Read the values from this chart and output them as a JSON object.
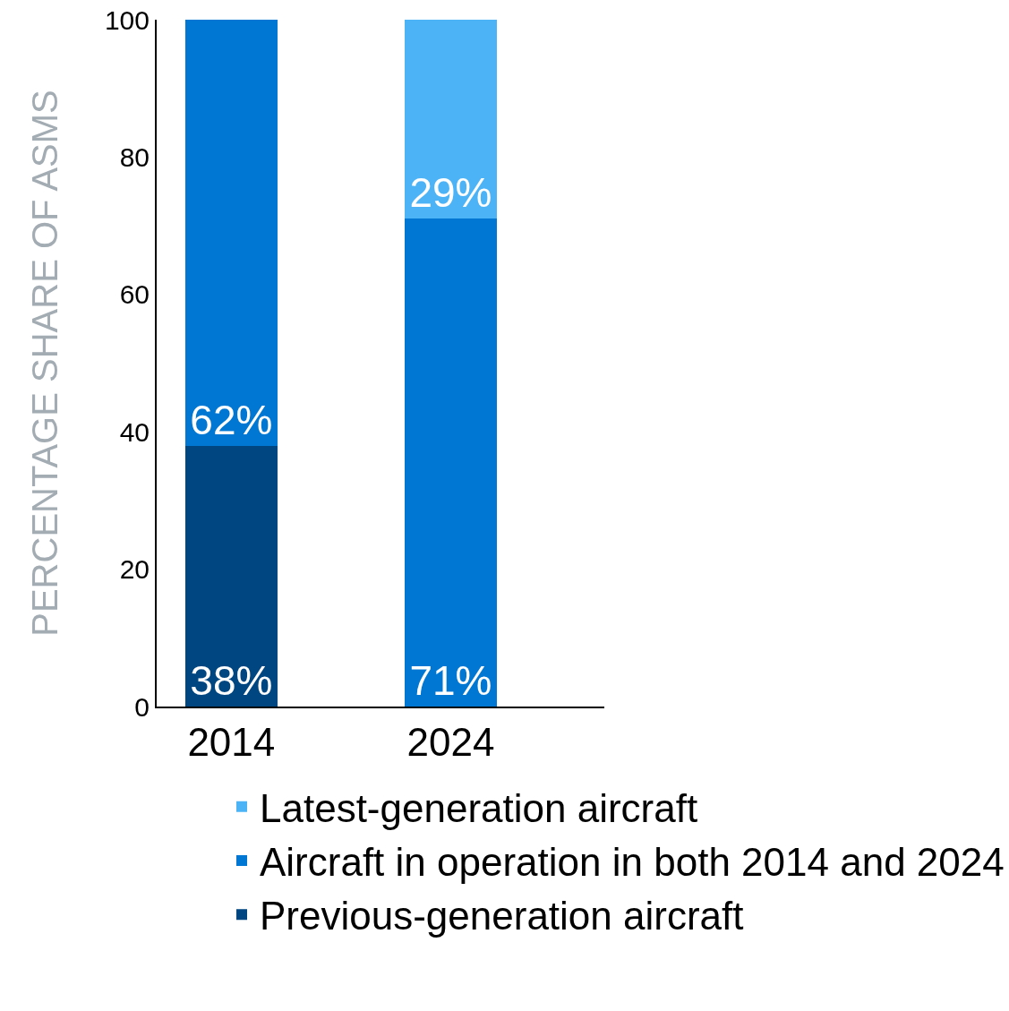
{
  "chart_data": {
    "type": "bar",
    "stacked": true,
    "ylabel": "PERCENTAGE SHARE OF ASMS",
    "categories": [
      "2014",
      "2024"
    ],
    "ylim": [
      0,
      100
    ],
    "yticks": [
      0,
      20,
      40,
      60,
      80,
      100
    ],
    "grid": false,
    "legend": "bottom",
    "series": [
      {
        "name": "Previous-generation aircraft",
        "color": "#004680",
        "values": [
          38,
          null
        ],
        "value_labels": [
          "38%",
          null
        ]
      },
      {
        "name": "Aircraft in operation in both 2014 and 2024",
        "color": "#0077d2",
        "values": [
          62,
          71
        ],
        "value_labels": [
          "62%",
          "71%"
        ]
      },
      {
        "name": "Latest-generation aircraft",
        "color": "#4db3f7",
        "values": [
          null,
          29
        ],
        "value_labels": [
          null,
          "29%"
        ]
      }
    ]
  }
}
